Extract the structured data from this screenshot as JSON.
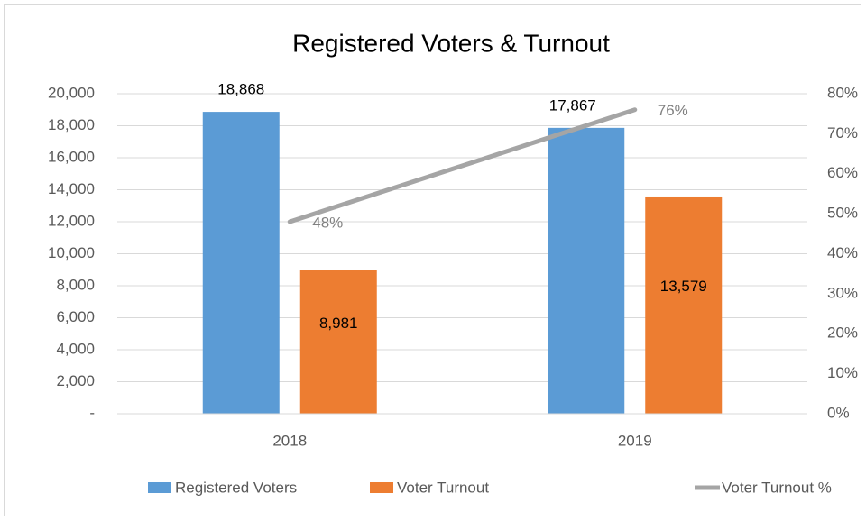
{
  "chart_data": {
    "type": "bar",
    "title": "Registered Voters & Turnout",
    "categories": [
      "2018",
      "2019"
    ],
    "series": [
      {
        "name": "Registered Voters",
        "color": "#5b9bd5",
        "values": [
          18868,
          17867
        ],
        "value_labels": [
          "18,868",
          "17,867"
        ]
      },
      {
        "name": "Voter Turnout",
        "color": "#ed7d31",
        "values": [
          8981,
          13579
        ],
        "value_labels": [
          "8,981",
          "13,579"
        ]
      },
      {
        "name": "Voter Turnout %",
        "color": "#a5a5a5",
        "type": "line",
        "axis": "y2",
        "values": [
          48,
          76
        ],
        "value_labels": [
          "48%",
          "76%"
        ]
      }
    ],
    "ylim": [
      0,
      20000
    ],
    "yticks": [
      {
        "value": 0,
        "label": "-"
      },
      {
        "value": 2000,
        "label": "2,000"
      },
      {
        "value": 4000,
        "label": "4,000"
      },
      {
        "value": 6000,
        "label": "6,000"
      },
      {
        "value": 8000,
        "label": "8,000"
      },
      {
        "value": 10000,
        "label": "10,000"
      },
      {
        "value": 12000,
        "label": "12,000"
      },
      {
        "value": 14000,
        "label": "14,000"
      },
      {
        "value": 16000,
        "label": "16,000"
      },
      {
        "value": 18000,
        "label": "18,000"
      },
      {
        "value": 20000,
        "label": "20,000"
      }
    ],
    "y2lim": [
      0,
      80
    ],
    "y2ticks": [
      {
        "value": 0,
        "label": "0%"
      },
      {
        "value": 10,
        "label": "10%"
      },
      {
        "value": 20,
        "label": "20%"
      },
      {
        "value": 30,
        "label": "30%"
      },
      {
        "value": 40,
        "label": "40%"
      },
      {
        "value": 50,
        "label": "50%"
      },
      {
        "value": 60,
        "label": "60%"
      },
      {
        "value": 70,
        "label": "70%"
      },
      {
        "value": 80,
        "label": "80%"
      }
    ],
    "grid": true,
    "legend": "bottom"
  }
}
